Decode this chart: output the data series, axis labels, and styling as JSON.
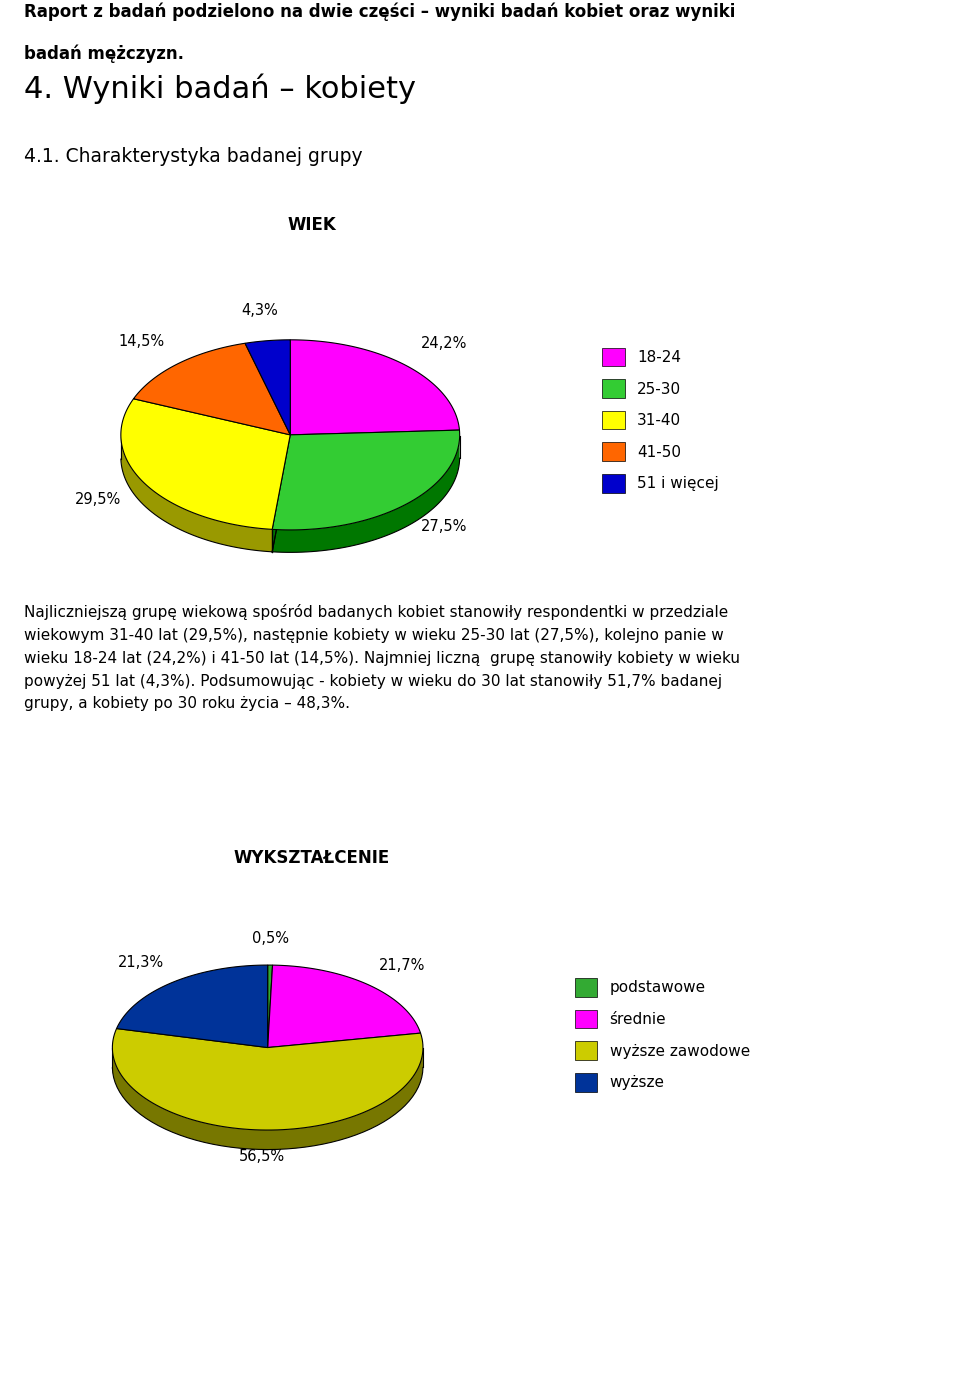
{
  "title1_line1": "Raport z badań podzielono na dwie części – wyniki badań kobiet oraz wyniki",
  "title1_line2": "badań mężczyzn.",
  "title2": "4. Wyniki badań – kobiety",
  "title3": "4.1. Charakterystyka badanej grupy",
  "pie1_title": "WIEK",
  "pie1_values": [
    24.2,
    27.5,
    29.5,
    14.5,
    4.3
  ],
  "pie1_labels": [
    "18-24",
    "25-30",
    "31-40",
    "41-50",
    "51 i więcej"
  ],
  "pie1_colors": [
    "#ff00ff",
    "#33cc33",
    "#ffff00",
    "#ff6600",
    "#0000cc"
  ],
  "pie1_dark_colors": [
    "#aa00aa",
    "#007700",
    "#999900",
    "#993d00",
    "#000077"
  ],
  "pie1_pct_labels": [
    "24,2%",
    "27,5%",
    "29,5%",
    "14,5%",
    "4,3%"
  ],
  "pie2_title": "WYKSZTAŁCENIE",
  "pie2_values": [
    0.5,
    21.7,
    56.5,
    21.3
  ],
  "pie2_labels": [
    "podstawowe",
    "średnie",
    "wyższe zawodowe",
    "wyższe"
  ],
  "pie2_colors": [
    "#33aa33",
    "#ff00ff",
    "#cccc00",
    "#003399"
  ],
  "pie2_dark_colors": [
    "#006600",
    "#aa00aa",
    "#777700",
    "#001166"
  ],
  "pie2_pct_labels": [
    "0,5%",
    "21,7%",
    "56,5%",
    "21,3%"
  ],
  "body_text_lines": [
    "Najliczniejszą grupę wiekową spośród badanych kobiet stanowiły respondentki w przedziale",
    "wiekowym 31-40 lat (29,5%), następnie kobiety w wieku 25-30 lat (27,5%), kolejno panie w",
    "wieku 18-24 lat (24,2%) i 41-50 lat (14,5%). Najmniej liczną  grupę stanowiły kobiety w wieku",
    "powyżej 51 lat (4,3%). Podsumowując - kobiety w wieku do 30 lat stanowiły 51,7% badanej",
    "grupy, a kobiety po 30 roku życia – 48,3%."
  ],
  "background_color": "#ffffff",
  "text_color": "#000000"
}
